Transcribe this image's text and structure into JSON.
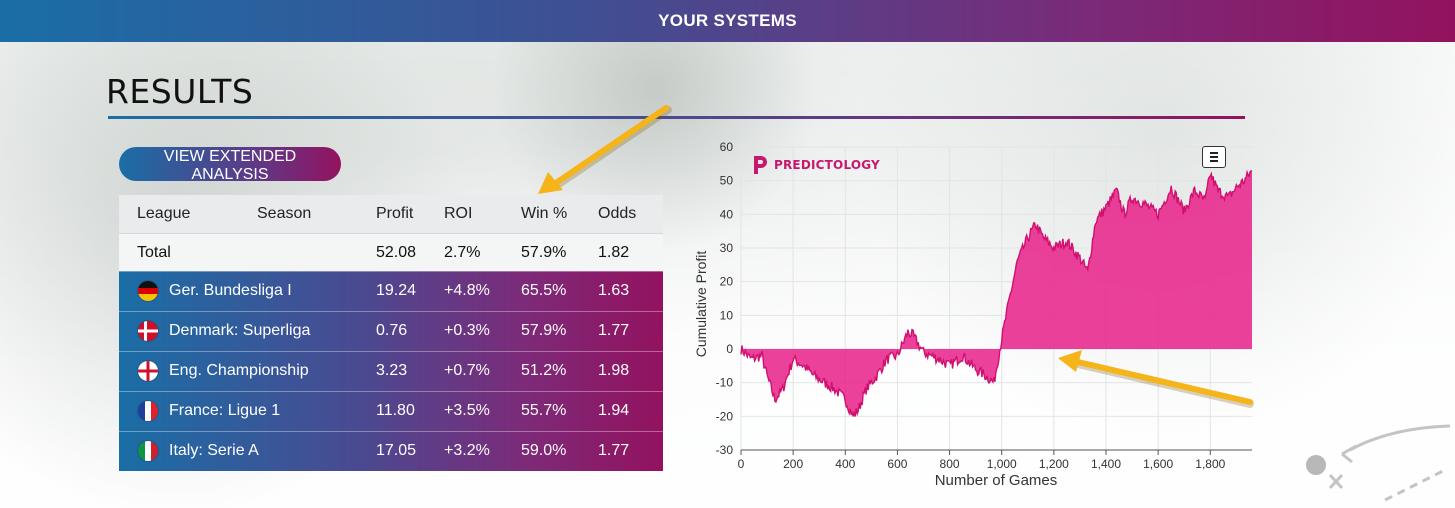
{
  "header": {
    "title": "YOUR SYSTEMS"
  },
  "page": {
    "title": "RESULTS"
  },
  "extended_button": {
    "label": "VIEW EXTENDED ANALYSIS"
  },
  "table": {
    "headers": {
      "league": "League",
      "season": "Season",
      "profit": "Profit",
      "roi": "ROI",
      "win": "Win %",
      "odds": "Odds"
    },
    "total": {
      "label": "Total",
      "profit": "52.08",
      "roi": "2.7%",
      "win": "57.9%",
      "odds": "1.82"
    },
    "rows": [
      {
        "flag": "germany-flag-icon",
        "name": "Ger. Bundesliga I",
        "profit": "19.24",
        "roi": "+4.8%",
        "win": "65.5%",
        "odds": "1.63"
      },
      {
        "flag": "denmark-flag-icon",
        "name": "Denmark: Superliga",
        "profit": "0.76",
        "roi": "+0.3%",
        "win": "57.9%",
        "odds": "1.77"
      },
      {
        "flag": "england-flag-icon",
        "name": "Eng. Championship",
        "profit": "3.23",
        "roi": "+0.7%",
        "win": "51.2%",
        "odds": "1.98"
      },
      {
        "flag": "france-flag-icon",
        "name": "France: Ligue 1",
        "profit": "11.80",
        "roi": "+3.5%",
        "win": "55.7%",
        "odds": "1.94"
      },
      {
        "flag": "italy-flag-icon",
        "name": "Italy: Serie A",
        "profit": "17.05",
        "roi": "+3.2%",
        "win": "59.0%",
        "odds": "1.77"
      }
    ]
  },
  "chart_data": {
    "type": "area",
    "logo_text": "PREDICTOLOGY",
    "xlabel": "Number of Games",
    "ylabel": "Cumulative Profit",
    "xlim": [
      0,
      1960
    ],
    "ylim": [
      -30,
      60
    ],
    "x_ticks": [
      "0",
      "200",
      "400",
      "600",
      "800",
      "1,000",
      "1,200",
      "1,400",
      "1,600",
      "1,800"
    ],
    "y_ticks": [
      "60",
      "50",
      "40",
      "30",
      "20",
      "10",
      "0",
      "-10",
      "-20",
      "-30"
    ],
    "grid": true,
    "color": "#e8208a",
    "x": [
      0,
      40,
      80,
      100,
      130,
      160,
      200,
      240,
      280,
      320,
      360,
      400,
      430,
      450,
      480,
      520,
      560,
      600,
      640,
      660,
      700,
      760,
      800,
      850,
      900,
      940,
      970,
      1000,
      1030,
      1060,
      1100,
      1130,
      1160,
      1200,
      1250,
      1300,
      1330,
      1360,
      1400,
      1440,
      1470,
      1500,
      1550,
      1600,
      1650,
      1700,
      1740,
      1780,
      1800,
      1830,
      1870,
      1900,
      1930,
      1960
    ],
    "y": [
      0,
      -3,
      -2,
      -8,
      -15,
      -12,
      -3,
      -5,
      -8,
      -10,
      -12,
      -15,
      -20,
      -18,
      -12,
      -8,
      -3,
      -2,
      5,
      4,
      -1,
      -3,
      -5,
      -2,
      -6,
      -8,
      -10,
      3,
      15,
      26,
      33,
      37,
      33,
      30,
      32,
      27,
      23,
      38,
      42,
      47,
      40,
      45,
      43,
      40,
      48,
      41,
      47,
      44,
      52,
      47,
      45,
      48,
      50,
      53
    ]
  },
  "icons": {
    "menu": "hamburger-menu-icon",
    "logo": "predictology-logo-icon"
  }
}
